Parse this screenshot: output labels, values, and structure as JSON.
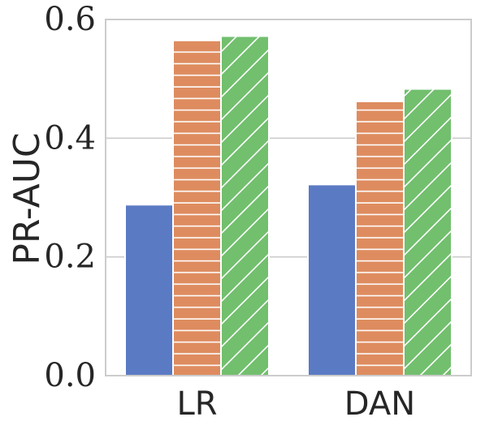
{
  "chart_data": {
    "type": "bar",
    "categories": [
      "LR",
      "DAN"
    ],
    "ylabel": "PR-AUC",
    "xlabel": "",
    "title": "",
    "ylim": [
      0,
      0.6
    ],
    "yticks": [
      0.0,
      0.2,
      0.4,
      0.6
    ],
    "ytick_labels": [
      "0.0",
      "0.2",
      "0.4",
      "0.6"
    ],
    "grid": true,
    "series": [
      {
        "values": [
          0.288,
          0.322
        ],
        "color": "#5b7ac4",
        "hatch": "none"
      },
      {
        "values": [
          0.565,
          0.462
        ],
        "color": "#de8c5f",
        "hatch": "horizontal"
      },
      {
        "values": [
          0.572,
          0.483
        ],
        "color": "#72bf6e",
        "hatch": "diagonal"
      }
    ]
  }
}
